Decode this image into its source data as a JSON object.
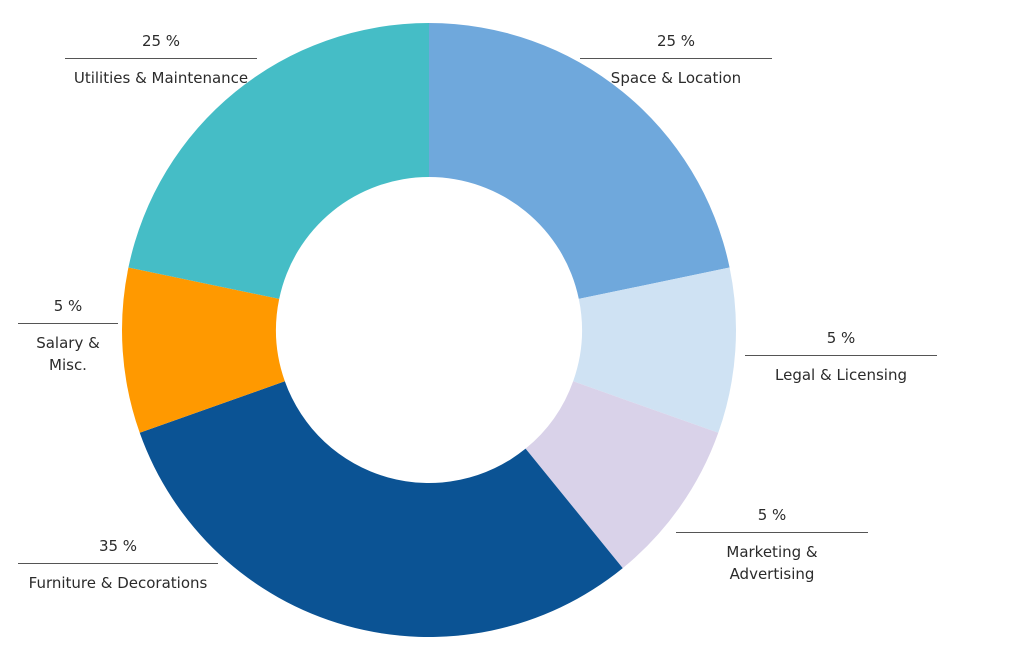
{
  "chart_data": {
    "type": "pie",
    "donut": true,
    "slices": [
      {
        "label": "Space & Location",
        "value": 25,
        "value_text": "25 %",
        "color": "#6fa8dc"
      },
      {
        "label": "Legal & Licensing",
        "value": 5,
        "value_text": "5 %",
        "color": "#cfe2f3"
      },
      {
        "label": "Marketing &\nAdvertising",
        "value": 5,
        "value_text": "5 %",
        "color": "#d9d2e9"
      },
      {
        "label": "Furniture & Decorations",
        "value": 35,
        "value_text": "35 %",
        "color": "#0b5394"
      },
      {
        "label": "Salary &\nMisc.",
        "value": 5,
        "value_text": "5 %",
        "color": "#ff9900"
      },
      {
        "label": "Utilities & Maintenance",
        "value": 25,
        "value_text": "25 %",
        "color": "#45bdc6"
      }
    ]
  }
}
